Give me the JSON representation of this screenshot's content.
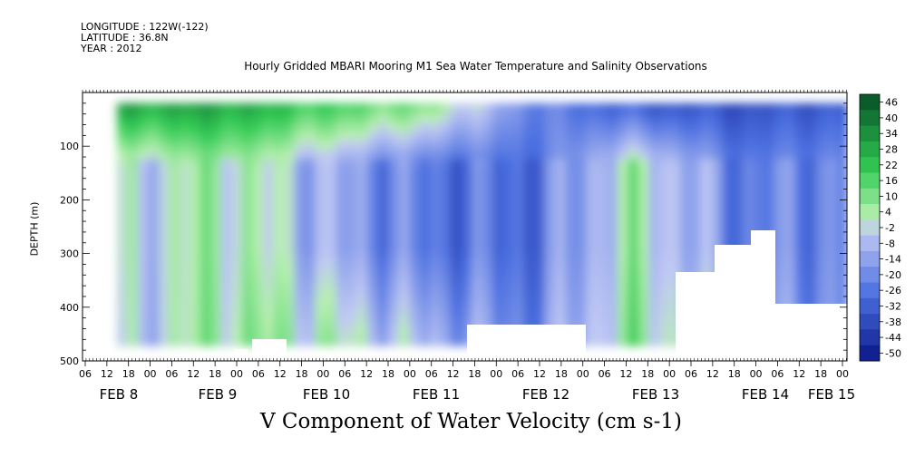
{
  "meta": {
    "longitude": "LONGITUDE : 122W(-122)",
    "latitude": "LATITUDE : 36.8N",
    "year": "YEAR : 2012"
  },
  "title": "Hourly Gridded MBARI Mooring M1 Sea Water Temperature and Salinity Observations",
  "footer": "V Component of Water Velocity (cm s-1)",
  "colors": {
    "high": "#0a5c2a",
    "mid_green": "#33cc55",
    "light_green": "#b8f0b0",
    "light_blue": "#c0c8f4",
    "mid_blue": "#4a6ee0",
    "low": "#0c1a8a"
  },
  "chart_data": {
    "type": "heatmap",
    "ylabel": "DEPTH (m)",
    "ylim": [
      500,
      0
    ],
    "y_ticks": [
      "100",
      "200",
      "300",
      "400",
      "500"
    ],
    "x_hour_ticks": [
      "06",
      "12",
      "18",
      "00",
      "06",
      "12",
      "18",
      "00",
      "06",
      "12",
      "18",
      "00",
      "06",
      "12",
      "18",
      "00",
      "06",
      "12",
      "18",
      "00",
      "06",
      "12",
      "18",
      "00",
      "06",
      "12",
      "18",
      "00",
      "06",
      "12",
      "18",
      "00",
      "06",
      "12",
      "18",
      "00"
    ],
    "x_day_labels": [
      "FEB  8",
      "FEB  9",
      "FEB 10",
      "FEB 11",
      "FEB 12",
      "FEB 13",
      "FEB 14",
      "FEB 15"
    ],
    "colorbar_levels": [
      "46",
      "40",
      "34",
      "28",
      "22",
      "16",
      "10",
      "4",
      "-2",
      "-8",
      "-14",
      "-20",
      "-26",
      "-32",
      "-38",
      "-44",
      "-50"
    ],
    "value_range": [
      -50,
      48
    ],
    "grid": false,
    "pattern": [
      {
        "time": "FEB 8 12",
        "near_surface": 30,
        "mid_depth": -4,
        "deep": -6
      },
      {
        "time": "FEB 9 06",
        "near_surface": 32,
        "mid_depth": 8,
        "deep": 10
      },
      {
        "time": "FEB 10 06",
        "near_surface": 20,
        "mid_depth": -10,
        "deep": 4
      },
      {
        "time": "FEB 11 00",
        "near_surface": 10,
        "mid_depth": -24,
        "deep": -8
      },
      {
        "time": "FEB 12 00",
        "near_surface": -20,
        "mid_depth": -26,
        "deep": -20
      },
      {
        "time": "FEB 13 00",
        "near_surface": -30,
        "mid_depth": 6,
        "deep": 10
      },
      {
        "time": "FEB 14 00",
        "near_surface": -34,
        "mid_depth": -22,
        "deep": -14
      },
      {
        "time": "FEB 14 18",
        "near_surface": -30,
        "mid_depth": -18,
        "deep": -16
      }
    ]
  }
}
